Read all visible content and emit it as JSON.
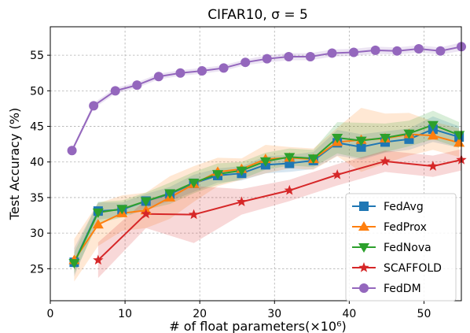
{
  "chart_data": {
    "type": "line",
    "title": "CIFAR10, σ = 5",
    "xlabel": "# of float parameters(×10⁶)",
    "ylabel": "Test Accuracy (%)",
    "xlim": [
      0,
      55
    ],
    "ylim": [
      20.5,
      59
    ],
    "xticks": [
      "0",
      "10",
      "20",
      "30",
      "40",
      "50"
    ],
    "yticks": [
      "25",
      "30",
      "35",
      "40",
      "45",
      "50",
      "55"
    ],
    "grid": true,
    "legend_position": "bottom-right",
    "series": [
      {
        "name": "FedAvg",
        "color": "#1f77b4",
        "marker": "square",
        "x": [
          3.2,
          6.4,
          9.6,
          12.8,
          16.0,
          19.2,
          22.4,
          25.6,
          28.8,
          32.0,
          35.2,
          38.4,
          41.6,
          44.8,
          48.0,
          51.2,
          54.7
        ],
        "y": [
          25.9,
          33.1,
          33.3,
          34.5,
          35.5,
          37.0,
          38.1,
          38.4,
          39.6,
          39.8,
          40.2,
          42.7,
          42.1,
          42.8,
          43.2,
          44.6,
          43.5
        ],
        "band": [
          2.0,
          1.2,
          1.0,
          1.0,
          1.0,
          1.2,
          1.0,
          1.0,
          1.2,
          1.2,
          1.2,
          1.8,
          1.8,
          1.5,
          1.5,
          1.8,
          1.5
        ]
      },
      {
        "name": "FedProx",
        "color": "#ff7f0e",
        "marker": "triangle-up",
        "x": [
          3.2,
          6.4,
          9.6,
          12.8,
          16.0,
          19.2,
          22.4,
          25.6,
          28.8,
          32.0,
          35.2,
          38.4,
          41.6,
          44.8,
          48.0,
          51.2,
          54.7
        ],
        "y": [
          26.2,
          31.2,
          32.8,
          33.2,
          35.0,
          36.9,
          38.6,
          39.0,
          40.4,
          40.6,
          40.4,
          42.8,
          43.1,
          43.3,
          43.9,
          43.7,
          42.7
        ],
        "band": [
          3.0,
          3.0,
          2.5,
          2.5,
          3.0,
          2.5,
          2.0,
          1.5,
          2.0,
          1.5,
          1.5,
          2.0,
          4.5,
          3.5,
          3.0,
          2.0,
          2.0
        ]
      },
      {
        "name": "FedNova",
        "color": "#2ca02c",
        "marker": "triangle-down",
        "x": [
          3.2,
          6.4,
          9.6,
          12.8,
          16.0,
          19.2,
          22.4,
          25.6,
          28.8,
          32.0,
          35.2,
          38.4,
          41.6,
          44.8,
          48.0,
          51.2,
          54.7
        ],
        "y": [
          25.8,
          32.9,
          33.4,
          34.5,
          35.6,
          37.1,
          38.3,
          38.8,
          40.1,
          40.7,
          40.5,
          43.4,
          43.0,
          43.4,
          44.0,
          45.2,
          43.8
        ],
        "band": [
          1.5,
          1.5,
          1.2,
          1.2,
          1.5,
          1.5,
          1.5,
          1.2,
          1.2,
          1.2,
          1.2,
          2.2,
          2.5,
          2.0,
          1.8,
          2.0,
          1.8
        ]
      },
      {
        "name": "SCAFFOLD",
        "color": "#d62728",
        "marker": "star",
        "x": [
          6.4,
          12.8,
          19.2,
          25.6,
          32.0,
          38.4,
          44.8,
          51.2,
          55.0
        ],
        "y": [
          26.2,
          32.7,
          32.6,
          34.4,
          36.0,
          38.2,
          40.1,
          39.4,
          40.3
        ],
        "band": [
          2.5,
          2.0,
          4.0,
          1.8,
          1.5,
          1.5,
          1.5,
          1.5,
          1.5
        ]
      },
      {
        "name": "FedDM",
        "color": "#9467bd",
        "marker": "circle",
        "x": [
          2.9,
          5.8,
          8.7,
          11.6,
          14.5,
          17.4,
          20.3,
          23.2,
          26.1,
          29.0,
          31.9,
          34.8,
          37.7,
          40.6,
          43.5,
          46.4,
          49.3,
          52.2,
          55.0
        ],
        "y": [
          41.6,
          47.9,
          50.0,
          50.8,
          52.0,
          52.5,
          52.8,
          53.2,
          54.0,
          54.5,
          54.8,
          54.8,
          55.3,
          55.4,
          55.7,
          55.6,
          55.9,
          55.6,
          56.2
        ],
        "band": [
          0.3,
          0.4,
          0.4,
          0.4,
          0.4,
          0.4,
          0.4,
          0.4,
          0.4,
          0.5,
          0.5,
          0.5,
          0.5,
          0.5,
          0.5,
          0.5,
          0.5,
          0.5,
          0.6
        ]
      }
    ]
  }
}
